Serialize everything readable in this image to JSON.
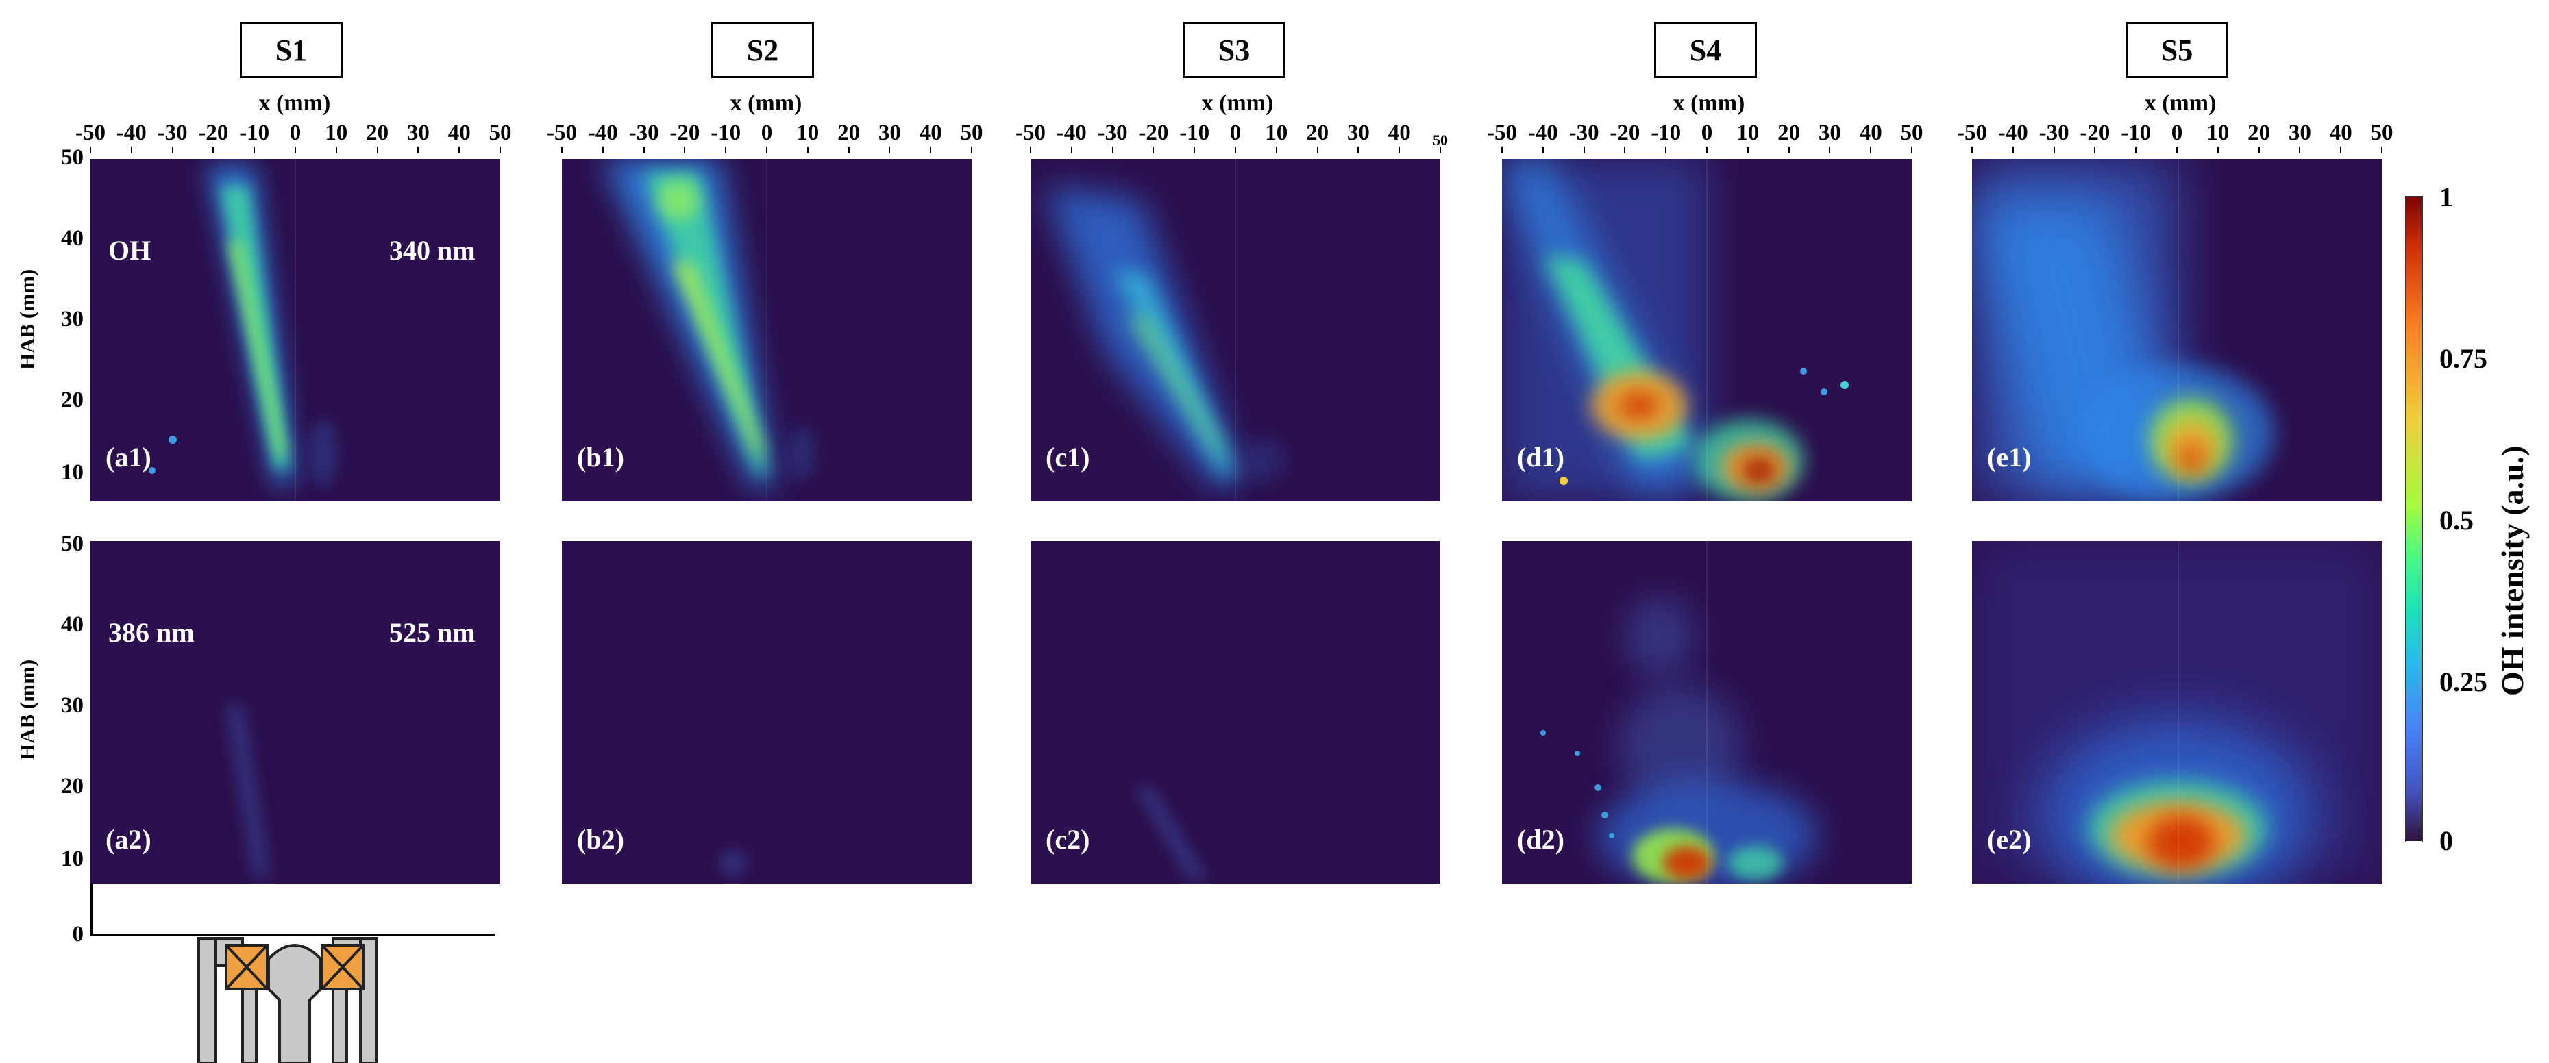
{
  "cases": [
    "S1",
    "S2",
    "S3",
    "S4",
    "S5"
  ],
  "x_axis_label": "x (mm)",
  "x_ticks": [
    "-50",
    "-40",
    "-30",
    "-20",
    "-10",
    "0",
    "10",
    "20",
    "30",
    "40",
    "50"
  ],
  "x_ticks_s3_last": "50",
  "y_axis_label": "HAB (mm)",
  "y_ticks_top": [
    "50",
    "40",
    "30",
    "20",
    "10"
  ],
  "y_ticks_bottom": [
    "50",
    "40",
    "30",
    "20",
    "10",
    "0"
  ],
  "row1_labels": [
    "(a1)",
    "(b1)",
    "(c1)",
    "(d1)",
    "(e1)"
  ],
  "row2_labels": [
    "(a2)",
    "(b2)",
    "(c2)",
    "(d2)",
    "(e2)"
  ],
  "annotations": {
    "oh": "OH",
    "nm340": "340 nm",
    "nm386": "386 nm",
    "nm525": "525 nm"
  },
  "colorbar": {
    "title": "OH intensity (a.u.)",
    "ticks": [
      "1",
      "0.75",
      "0.5",
      "0.25",
      "0"
    ],
    "colormap": "turbo",
    "colors": [
      "#30123b",
      "#4686fb",
      "#1ae4b6",
      "#a4fc3c",
      "#edd03a",
      "#fb8022",
      "#d23105",
      "#7a0403"
    ]
  },
  "burner_colors": {
    "body": "#c8c8c8",
    "insert": "#f0a040",
    "outline": "#222222"
  }
}
